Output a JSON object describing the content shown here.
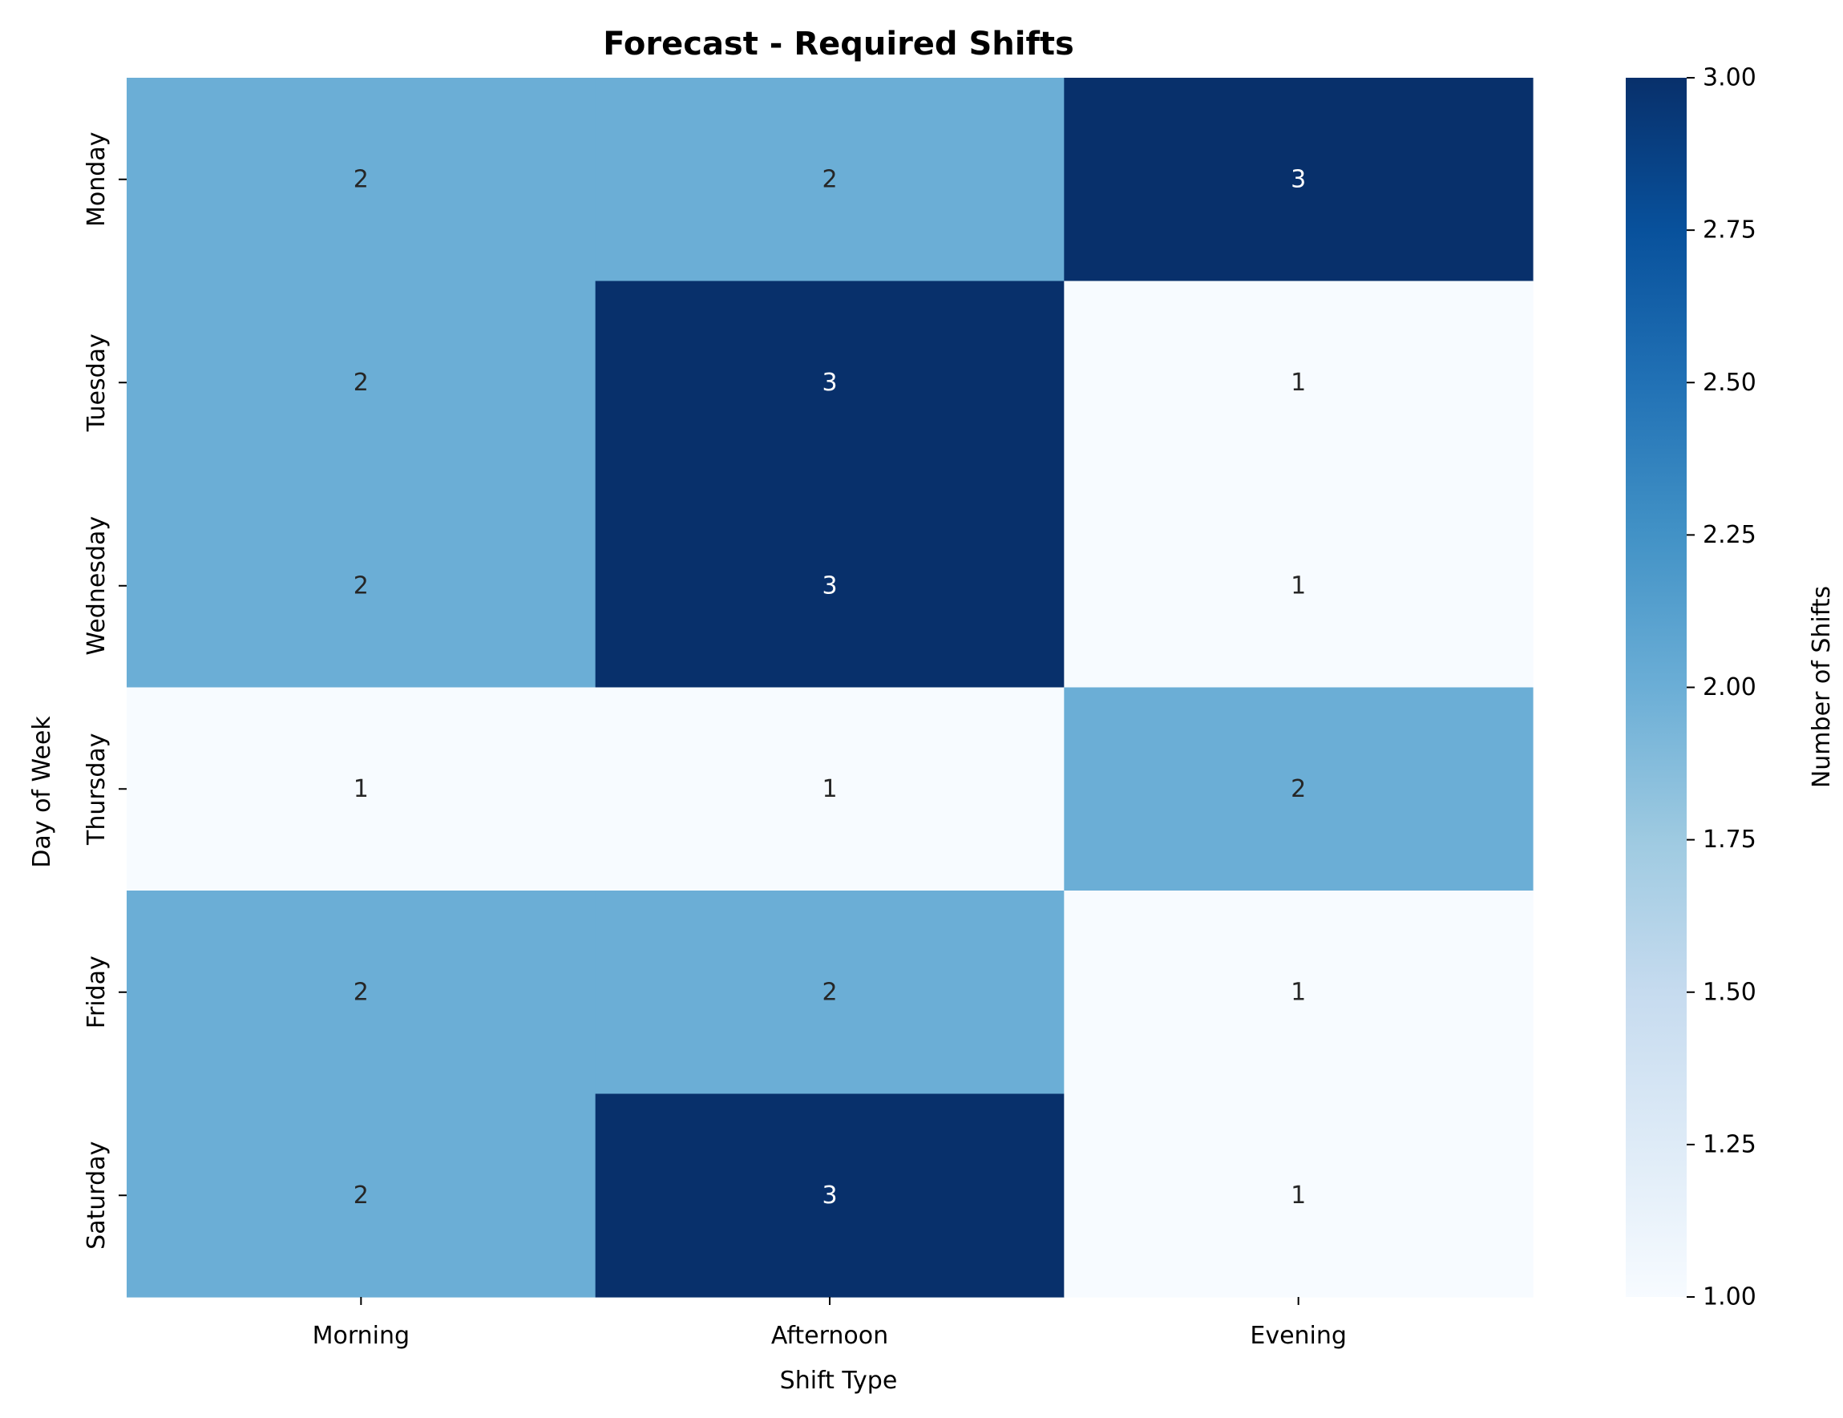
{
  "chart_data": {
    "type": "heatmap",
    "title": "Forecast - Required Shifts",
    "xlabel": "Shift Type",
    "ylabel": "Day of Week",
    "x_categories": [
      "Morning",
      "Afternoon",
      "Evening"
    ],
    "y_categories": [
      "Monday",
      "Tuesday",
      "Wednesday",
      "Thursday",
      "Friday",
      "Saturday"
    ],
    "values": [
      [
        2,
        2,
        3
      ],
      [
        2,
        3,
        1
      ],
      [
        2,
        3,
        1
      ],
      [
        1,
        1,
        2
      ],
      [
        2,
        2,
        1
      ],
      [
        2,
        3,
        1
      ]
    ],
    "colorbar": {
      "label": "Number of Shifts",
      "range": [
        1.0,
        3.0
      ],
      "ticks": [
        "1.00",
        "1.25",
        "1.50",
        "1.75",
        "2.00",
        "2.25",
        "2.50",
        "2.75",
        "3.00"
      ],
      "colormap": "Blues"
    },
    "annotated": true,
    "grid": false
  }
}
